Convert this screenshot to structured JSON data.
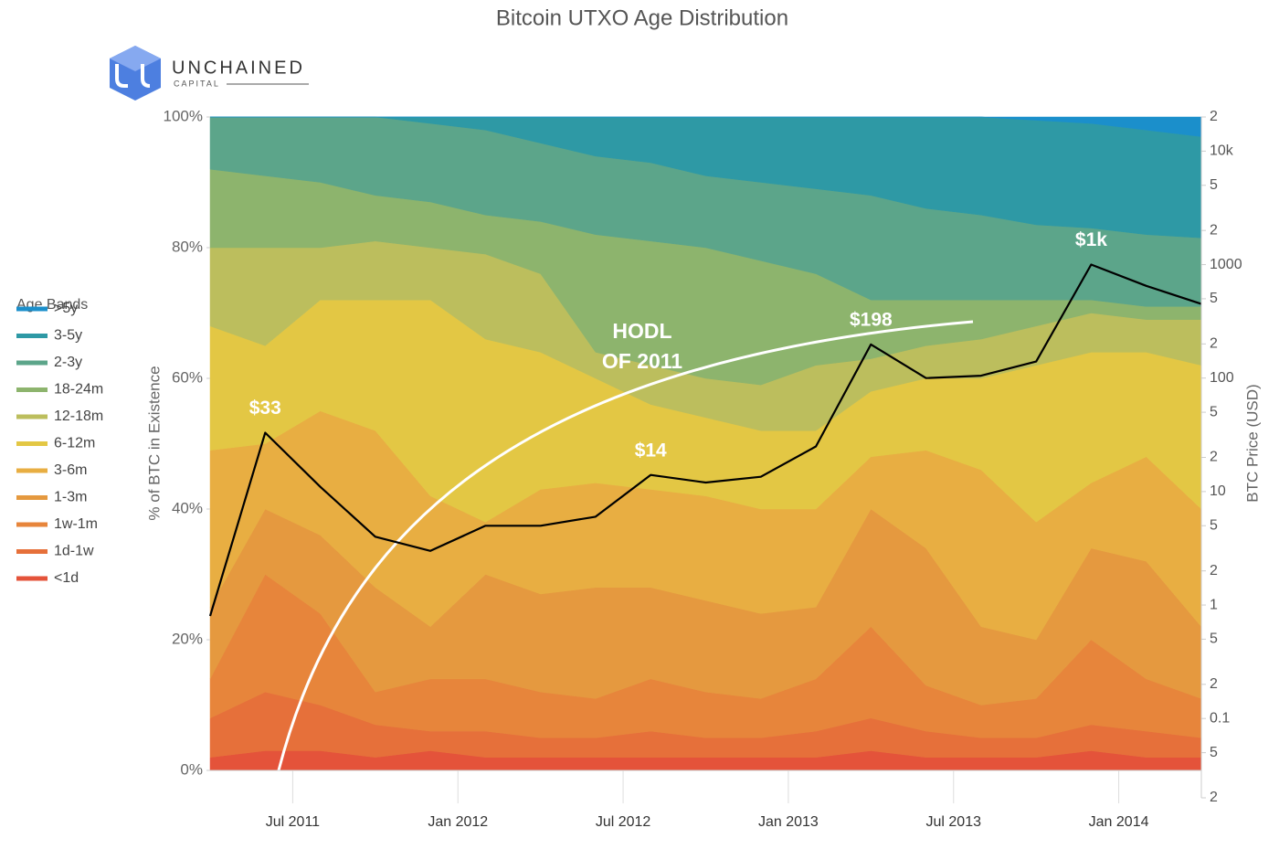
{
  "logo": {
    "name": "UNCHAINED",
    "sub": "CAPITAL"
  },
  "chart_data": {
    "type": "stacked_area",
    "title": "Bitcoin UTXO Age Distribution",
    "y_label": "% of BTC in Existence",
    "y2_label": "BTC Price (USD)",
    "legend_title": "Age Bands",
    "legend": "left",
    "annotation": [
      "HODL",
      "OF 2011"
    ],
    "x": [
      "2011-04",
      "2011-06",
      "2011-08",
      "2011-10",
      "2011-12",
      "2012-02",
      "2012-04",
      "2012-06",
      "2012-08",
      "2012-10",
      "2012-12",
      "2013-02",
      "2013-04",
      "2013-06",
      "2013-08",
      "2013-10",
      "2013-12",
      "2014-02",
      "2014-04"
    ],
    "xlim": [
      "2011-04",
      "2014-04"
    ],
    "xticks": [
      {
        "value": "2011-07",
        "label": "Jul 2011"
      },
      {
        "value": "2012-01",
        "label": "Jan 2012"
      },
      {
        "value": "2012-07",
        "label": "Jul 2012"
      },
      {
        "value": "2013-01",
        "label": "Jan 2013"
      },
      {
        "value": "2013-07",
        "label": "Jul 2013"
      },
      {
        "value": "2014-01",
        "label": "Jan 2014"
      }
    ],
    "ylim": [
      0,
      100
    ],
    "yticks": [
      {
        "value": 0,
        "label": "0%"
      },
      {
        "value": 20,
        "label": "20%"
      },
      {
        "value": 40,
        "label": "40%"
      },
      {
        "value": 60,
        "label": "60%"
      },
      {
        "value": 80,
        "label": "80%"
      },
      {
        "value": 100,
        "label": "100%"
      }
    ],
    "y2scale": "log",
    "y2lim": [
      0.02,
      20000
    ],
    "y2ticks": [
      {
        "value": 20000,
        "label": "2"
      },
      {
        "value": 10000,
        "label": "10k"
      },
      {
        "value": 5000,
        "label": "5"
      },
      {
        "value": 2000,
        "label": "2"
      },
      1000,
      {
        "value": 500,
        "label": "5"
      },
      {
        "value": 200,
        "label": "2"
      },
      100,
      {
        "value": 50,
        "label": "5"
      },
      {
        "value": 20,
        "label": "2"
      },
      10,
      5,
      2,
      1,
      {
        "value": 0.5,
        "label": "5"
      },
      {
        "value": 0.2,
        "label": "2"
      },
      0.1,
      {
        "value": 0.05,
        "label": "5"
      },
      {
        "value": 0.02,
        "label": "2"
      }
    ],
    "series": [
      {
        "name": "<1d",
        "color": "#e4533a",
        "values": [
          2,
          3,
          3,
          2,
          3,
          2,
          2,
          2,
          2,
          2,
          2,
          2,
          3,
          2,
          2,
          2,
          3,
          2,
          2
        ]
      },
      {
        "name": "1d-1w",
        "color": "#e6703a",
        "values": [
          6,
          9,
          7,
          5,
          3,
          4,
          3,
          3,
          4,
          3,
          3,
          4,
          5,
          4,
          3,
          3,
          4,
          4,
          3
        ]
      },
      {
        "name": "1w-1m",
        "color": "#e7853b",
        "values": [
          6,
          18,
          14,
          5,
          8,
          8,
          7,
          6,
          8,
          7,
          6,
          8,
          14,
          7,
          5,
          6,
          13,
          8,
          6
        ]
      },
      {
        "name": "1-3m",
        "color": "#e5993f",
        "values": [
          11,
          10,
          12,
          16,
          8,
          16,
          15,
          17,
          14,
          14,
          13,
          11,
          18,
          21,
          12,
          9,
          14,
          18,
          11
        ]
      },
      {
        "name": "3-6m",
        "color": "#e8ae42",
        "values": [
          24,
          10,
          19,
          24,
          20,
          8,
          16,
          16,
          15,
          16,
          16,
          15,
          8,
          15,
          24,
          18,
          10,
          16,
          18
        ]
      },
      {
        "name": "6-12m",
        "color": "#e3c744",
        "values": [
          19,
          15,
          17,
          20,
          30,
          28,
          21,
          16,
          13,
          12,
          12,
          12,
          10,
          11,
          14,
          24,
          20,
          16,
          22
        ]
      },
      {
        "name": "12-18m",
        "color": "#bcbe5d",
        "values": [
          12,
          15,
          8,
          9,
          8,
          13,
          12,
          4,
          6,
          6,
          7,
          10,
          5,
          5,
          6,
          6,
          6,
          5,
          7
        ]
      },
      {
        "name": "18-24m",
        "color": "#8db46d",
        "values": [
          12,
          11,
          10,
          7,
          7,
          6,
          8,
          18,
          19,
          20,
          19,
          14,
          9,
          7,
          6,
          4,
          2,
          2,
          2
        ]
      },
      {
        "name": "2-3y",
        "color": "#5ca58a",
        "values": [
          8,
          9,
          10,
          12,
          12,
          13,
          12,
          12,
          12,
          11,
          12,
          13,
          16,
          14,
          13,
          11.5,
          11,
          11,
          10.5
        ]
      },
      {
        "name": "3-5y",
        "color": "#2e99a5",
        "values": [
          0,
          0,
          0,
          0,
          1,
          2,
          4,
          6,
          7,
          9,
          10,
          11,
          12,
          14,
          15,
          16,
          16,
          16,
          15.5
        ]
      },
      {
        "name": ">5y",
        "color": "#1b8fcb",
        "values": [
          0,
          0,
          0,
          0,
          0,
          0,
          0,
          0,
          0,
          0,
          0,
          0,
          0,
          0,
          0,
          0.5,
          1,
          2,
          3
        ]
      },
      {
        "axis": "y2",
        "color": "#000000",
        "values": [
          0.8,
          33,
          11,
          4,
          3,
          5,
          5,
          6,
          14,
          12,
          13.5,
          25,
          198,
          100,
          105,
          140,
          1000,
          650,
          450
        ],
        "value_labels": [
          null,
          "$33",
          null,
          null,
          null,
          null,
          null,
          null,
          "$14",
          null,
          null,
          null,
          "$198",
          null,
          null,
          null,
          "$1k",
          null,
          null
        ]
      }
    ]
  }
}
